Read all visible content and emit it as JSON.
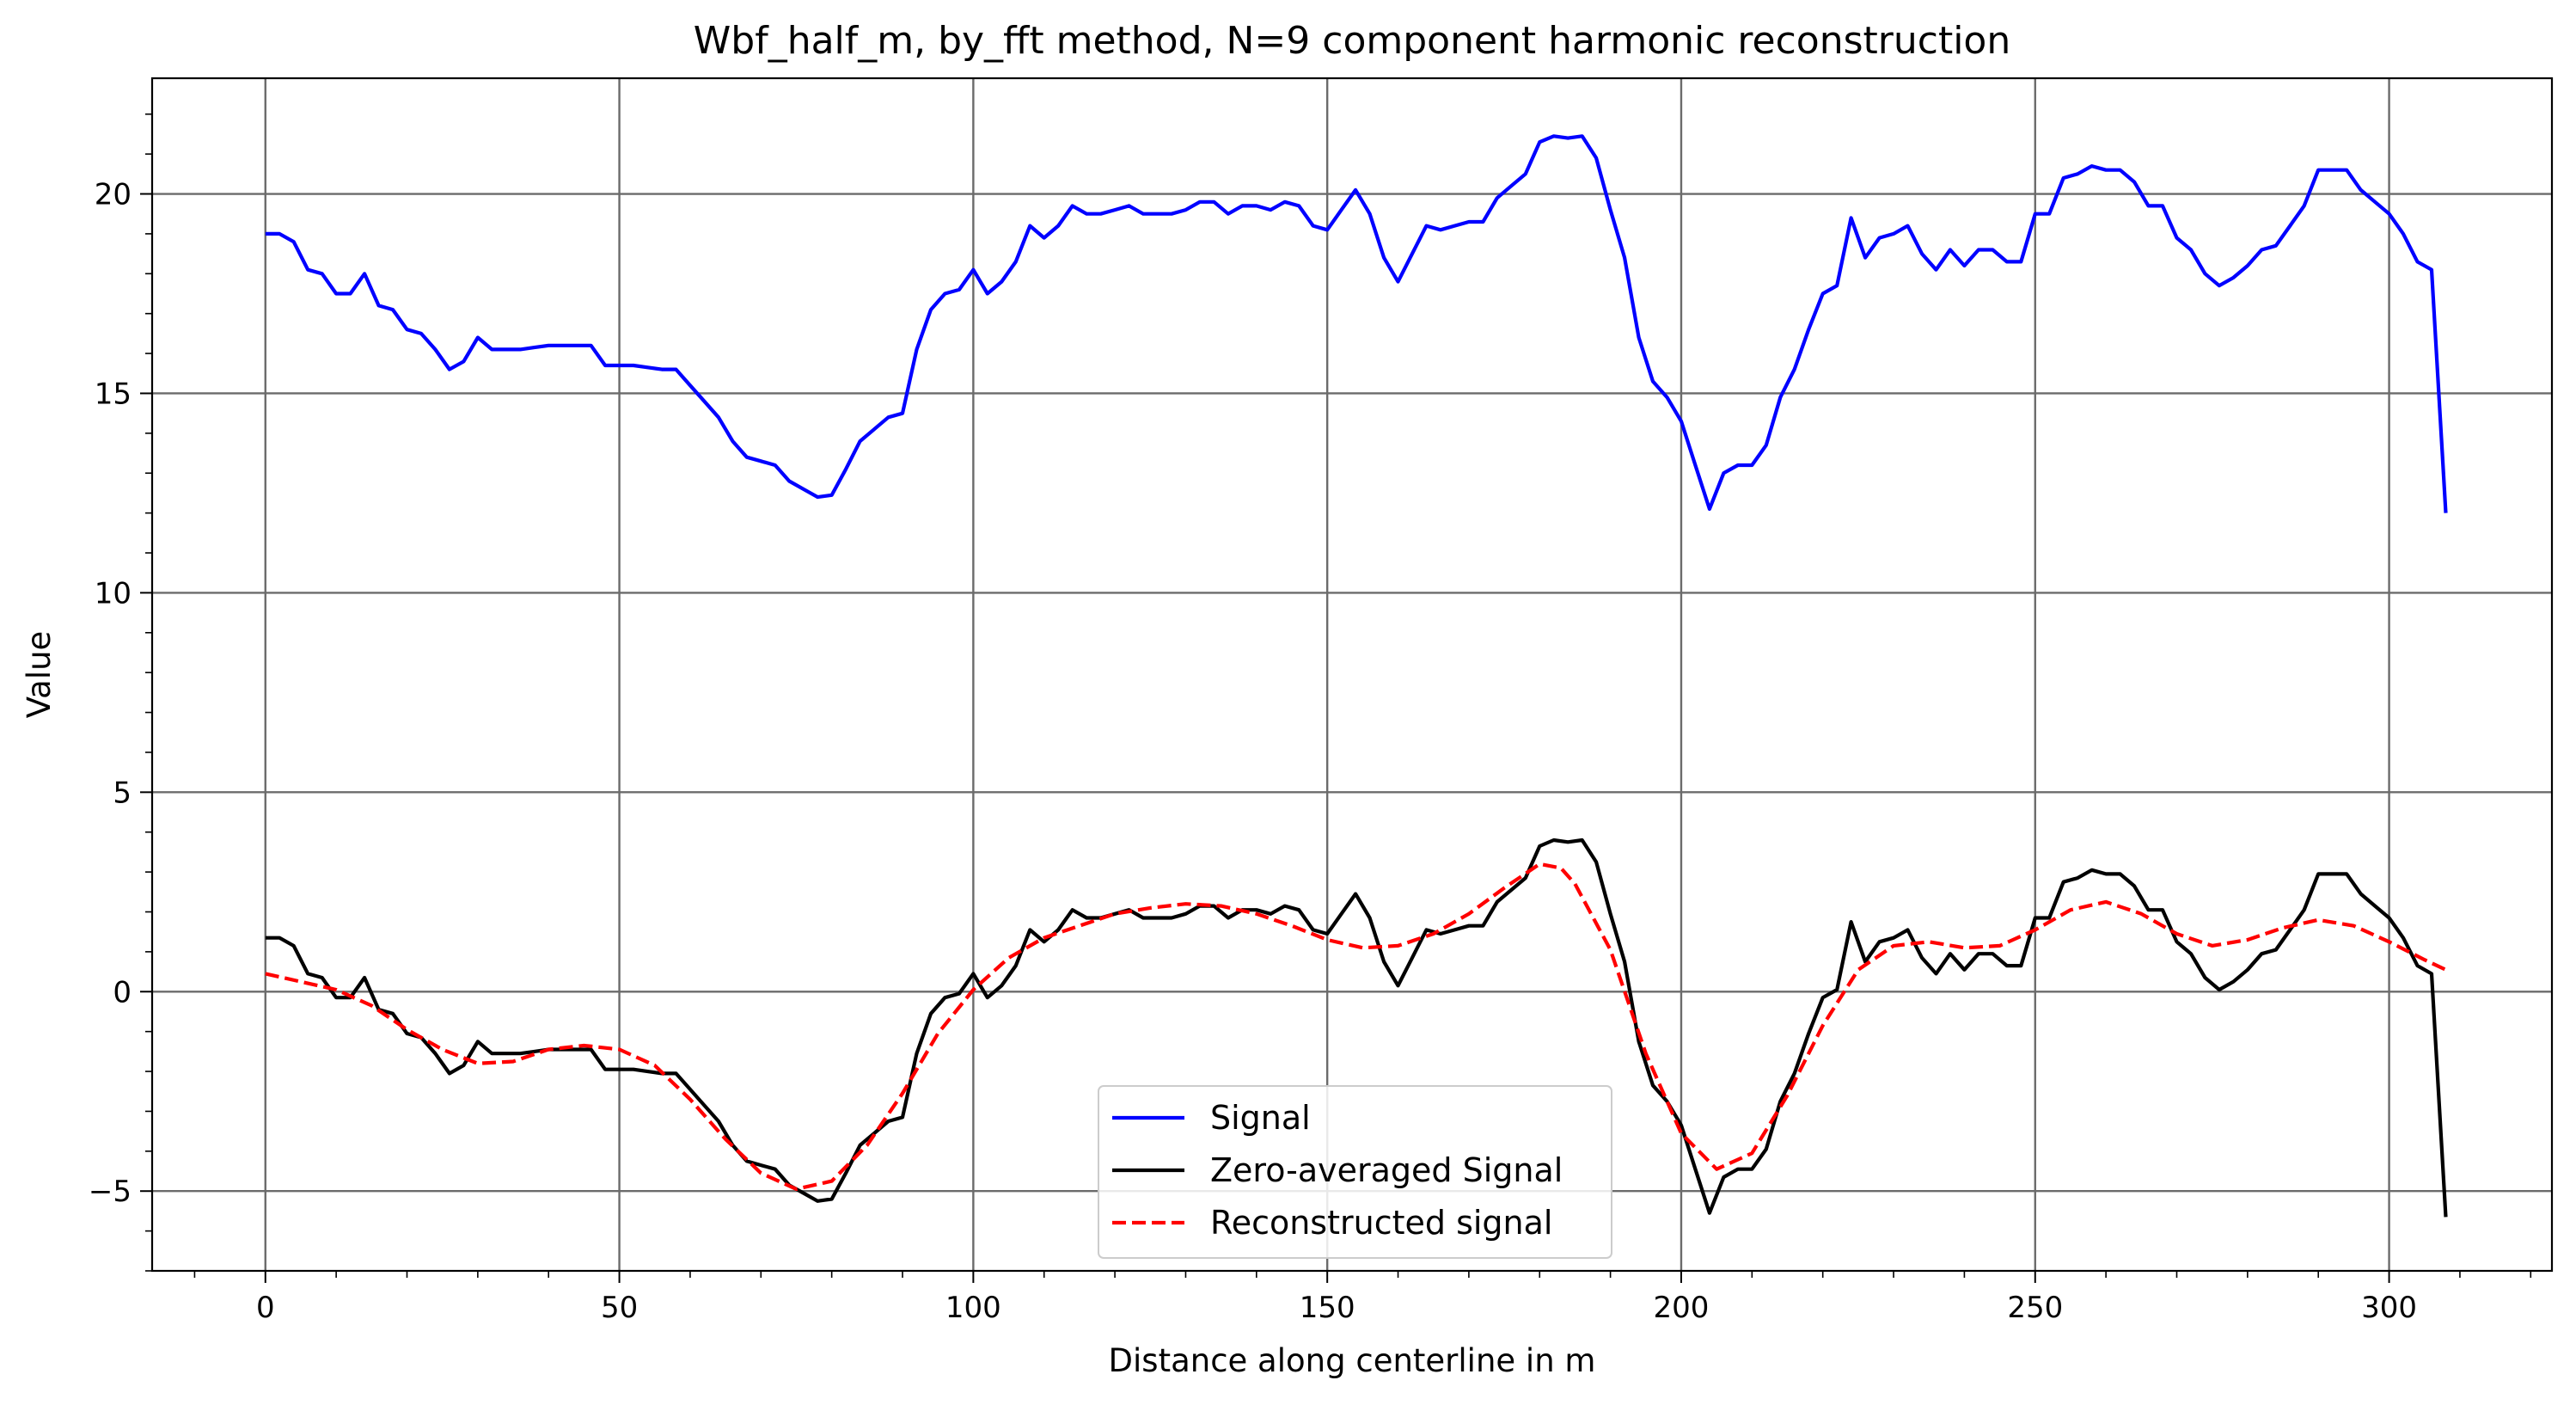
{
  "chart_data": {
    "type": "line",
    "title": "Wbf_half_m, by_fft method, N=9 component harmonic reconstruction",
    "xlabel": "Distance along centerline in m",
    "ylabel": "Value",
    "xlim": [
      -16,
      323
    ],
    "ylim": [
      -7,
      22.9
    ],
    "xticks": [
      0,
      50,
      100,
      150,
      200,
      250,
      300
    ],
    "yticks": [
      -5,
      0,
      5,
      10,
      15,
      20
    ],
    "xtick_labels": [
      "0",
      "50",
      "100",
      "150",
      "200",
      "250",
      "300"
    ],
    "ytick_labels": [
      "−5",
      "0",
      "5",
      "10",
      "15",
      "20"
    ],
    "grid": true,
    "legend_position": "lower center",
    "mean_offset": 17.65,
    "series": [
      {
        "name": "Signal",
        "color": "#0000ff",
        "style": "solid",
        "x": [
          0,
          2,
          4,
          6,
          8,
          10,
          12,
          14,
          16,
          18,
          20,
          22,
          24,
          26,
          28,
          30,
          32,
          34,
          36,
          38,
          40,
          42,
          44,
          46,
          48,
          50,
          52,
          54,
          56,
          58,
          60,
          62,
          64,
          66,
          68,
          70,
          72,
          74,
          76,
          78,
          80,
          82,
          84,
          86,
          88,
          90,
          92,
          94,
          96,
          98,
          100,
          102,
          104,
          106,
          108,
          110,
          112,
          114,
          116,
          118,
          120,
          122,
          124,
          126,
          128,
          130,
          132,
          134,
          136,
          138,
          140,
          142,
          144,
          146,
          148,
          150,
          152,
          154,
          156,
          158,
          160,
          162,
          164,
          166,
          168,
          170,
          172,
          174,
          176,
          178,
          180,
          182,
          184,
          186,
          188,
          190,
          192,
          194,
          196,
          198,
          200,
          202,
          204,
          206,
          208,
          210,
          212,
          214,
          216,
          218,
          220,
          222,
          224,
          226,
          228,
          230,
          232,
          234,
          236,
          238,
          240,
          242,
          244,
          246,
          248,
          250,
          252,
          254,
          256,
          258,
          260,
          262,
          264,
          266,
          268,
          270,
          272,
          274,
          276,
          278,
          280,
          282,
          284,
          286,
          288,
          290,
          292,
          294,
          296,
          298,
          300,
          302,
          304,
          306,
          308
        ],
        "y": [
          19.0,
          19.0,
          18.8,
          18.1,
          18.0,
          17.5,
          17.5,
          18.0,
          17.2,
          17.1,
          16.6,
          16.5,
          16.1,
          15.6,
          15.8,
          16.4,
          16.1,
          16.1,
          16.1,
          16.15,
          16.2,
          16.2,
          16.2,
          16.2,
          15.7,
          15.7,
          15.7,
          15.65,
          15.6,
          15.6,
          15.2,
          14.8,
          14.4,
          13.8,
          13.4,
          13.3,
          13.2,
          12.8,
          12.6,
          12.4,
          12.45,
          13.1,
          13.8,
          14.1,
          14.4,
          14.5,
          16.1,
          17.1,
          17.5,
          17.6,
          18.1,
          17.5,
          17.8,
          18.3,
          19.2,
          18.9,
          19.2,
          19.7,
          19.5,
          19.5,
          19.6,
          19.7,
          19.5,
          19.5,
          19.5,
          19.6,
          19.8,
          19.8,
          19.5,
          19.7,
          19.7,
          19.6,
          19.8,
          19.7,
          19.2,
          19.1,
          19.6,
          20.1,
          19.5,
          18.4,
          17.8,
          18.5,
          19.2,
          19.1,
          19.2,
          19.3,
          19.3,
          19.9,
          20.2,
          20.5,
          21.3,
          21.45,
          21.4,
          21.45,
          20.9,
          19.6,
          18.4,
          16.4,
          15.3,
          14.9,
          14.3,
          13.2,
          12.1,
          13.0,
          13.2,
          13.2,
          13.7,
          14.9,
          15.6,
          16.6,
          17.5,
          17.7,
          19.4,
          18.4,
          18.9,
          19.0,
          19.2,
          18.5,
          18.1,
          18.6,
          18.2,
          18.6,
          18.6,
          18.3,
          18.3,
          19.5,
          19.5,
          20.4,
          20.5,
          20.7,
          20.6,
          20.6,
          20.3,
          19.7,
          19.7,
          18.9,
          18.6,
          18.0,
          17.7,
          17.9,
          18.2,
          18.6,
          18.7,
          19.2,
          19.7,
          20.6,
          20.6,
          20.6,
          20.1,
          19.8,
          19.5,
          19.0,
          18.3,
          18.1,
          12.0
        ]
      },
      {
        "name": "Zero-averaged Signal",
        "color": "#000000",
        "style": "solid",
        "x": [
          0,
          2,
          4,
          6,
          8,
          10,
          12,
          14,
          16,
          18,
          20,
          22,
          24,
          26,
          28,
          30,
          32,
          34,
          36,
          38,
          40,
          42,
          44,
          46,
          48,
          50,
          52,
          54,
          56,
          58,
          60,
          62,
          64,
          66,
          68,
          70,
          72,
          74,
          76,
          78,
          80,
          82,
          84,
          86,
          88,
          90,
          92,
          94,
          96,
          98,
          100,
          102,
          104,
          106,
          108,
          110,
          112,
          114,
          116,
          118,
          120,
          122,
          124,
          126,
          128,
          130,
          132,
          134,
          136,
          138,
          140,
          142,
          144,
          146,
          148,
          150,
          152,
          154,
          156,
          158,
          160,
          162,
          164,
          166,
          168,
          170,
          172,
          174,
          176,
          178,
          180,
          182,
          184,
          186,
          188,
          190,
          192,
          194,
          196,
          198,
          200,
          202,
          204,
          206,
          208,
          210,
          212,
          214,
          216,
          218,
          220,
          222,
          224,
          226,
          228,
          230,
          232,
          234,
          236,
          238,
          240,
          242,
          244,
          246,
          248,
          250,
          252,
          254,
          256,
          258,
          260,
          262,
          264,
          266,
          268,
          270,
          272,
          274,
          276,
          278,
          280,
          282,
          284,
          286,
          288,
          290,
          292,
          294,
          296,
          298,
          300,
          302,
          304,
          306,
          308
        ],
        "y": [
          1.35,
          1.35,
          1.15,
          0.45,
          0.35,
          -0.15,
          -0.15,
          0.35,
          -0.45,
          -0.55,
          -1.05,
          -1.15,
          -1.55,
          -2.05,
          -1.85,
          -1.25,
          -1.55,
          -1.55,
          -1.55,
          -1.5,
          -1.45,
          -1.45,
          -1.45,
          -1.45,
          -1.95,
          -1.95,
          -1.95,
          -2.0,
          -2.05,
          -2.05,
          -2.45,
          -2.85,
          -3.25,
          -3.85,
          -4.25,
          -4.35,
          -4.45,
          -4.85,
          -5.05,
          -5.25,
          -5.2,
          -4.55,
          -3.85,
          -3.55,
          -3.25,
          -3.15,
          -1.55,
          -0.55,
          -0.15,
          -0.05,
          0.45,
          -0.15,
          0.15,
          0.65,
          1.55,
          1.25,
          1.55,
          2.05,
          1.85,
          1.85,
          1.95,
          2.05,
          1.85,
          1.85,
          1.85,
          1.95,
          2.15,
          2.15,
          1.85,
          2.05,
          2.05,
          1.95,
          2.15,
          2.05,
          1.55,
          1.45,
          1.95,
          2.45,
          1.85,
          0.75,
          0.15,
          0.85,
          1.55,
          1.45,
          1.55,
          1.65,
          1.65,
          2.25,
          2.55,
          2.85,
          3.65,
          3.8,
          3.75,
          3.8,
          3.25,
          1.95,
          0.75,
          -1.25,
          -2.35,
          -2.75,
          -3.35,
          -4.45,
          -5.55,
          -4.65,
          -4.45,
          -4.45,
          -3.95,
          -2.75,
          -2.05,
          -1.05,
          -0.15,
          0.05,
          1.75,
          0.75,
          1.25,
          1.35,
          1.55,
          0.85,
          0.45,
          0.95,
          0.55,
          0.95,
          0.95,
          0.65,
          0.65,
          1.85,
          1.85,
          2.75,
          2.85,
          3.05,
          2.95,
          2.95,
          2.65,
          2.05,
          2.05,
          1.25,
          0.95,
          0.35,
          0.05,
          0.25,
          0.55,
          0.95,
          1.05,
          1.55,
          2.05,
          2.95,
          2.95,
          2.95,
          2.45,
          2.15,
          1.85,
          1.35,
          0.65,
          0.45,
          -5.65
        ]
      },
      {
        "name": "Reconstructed signal",
        "color": "#ff0000",
        "style": "dashed",
        "x": [
          0,
          5,
          10,
          15,
          20,
          25,
          30,
          35,
          40,
          45,
          50,
          55,
          60,
          65,
          70,
          75,
          80,
          85,
          90,
          95,
          100,
          105,
          110,
          115,
          120,
          125,
          130,
          135,
          140,
          145,
          150,
          155,
          160,
          165,
          170,
          175,
          180,
          183,
          185,
          190,
          195,
          200,
          205,
          210,
          215,
          220,
          225,
          230,
          235,
          240,
          245,
          250,
          255,
          260,
          265,
          270,
          275,
          280,
          285,
          290,
          295,
          300,
          305,
          308
        ],
        "y": [
          0.45,
          0.25,
          0.05,
          -0.35,
          -0.95,
          -1.45,
          -1.8,
          -1.75,
          -1.45,
          -1.35,
          -1.45,
          -1.85,
          -2.7,
          -3.7,
          -4.55,
          -4.95,
          -4.75,
          -3.85,
          -2.55,
          -1.05,
          0.05,
          0.85,
          1.35,
          1.65,
          1.95,
          2.1,
          2.2,
          2.15,
          1.95,
          1.65,
          1.3,
          1.1,
          1.15,
          1.45,
          1.95,
          2.6,
          3.2,
          3.1,
          2.7,
          1.05,
          -1.55,
          -3.55,
          -4.45,
          -4.05,
          -2.6,
          -0.85,
          0.55,
          1.15,
          1.25,
          1.1,
          1.15,
          1.55,
          2.05,
          2.25,
          1.95,
          1.45,
          1.15,
          1.3,
          1.6,
          1.8,
          1.65,
          1.25,
          0.8,
          0.55
        ]
      }
    ]
  }
}
